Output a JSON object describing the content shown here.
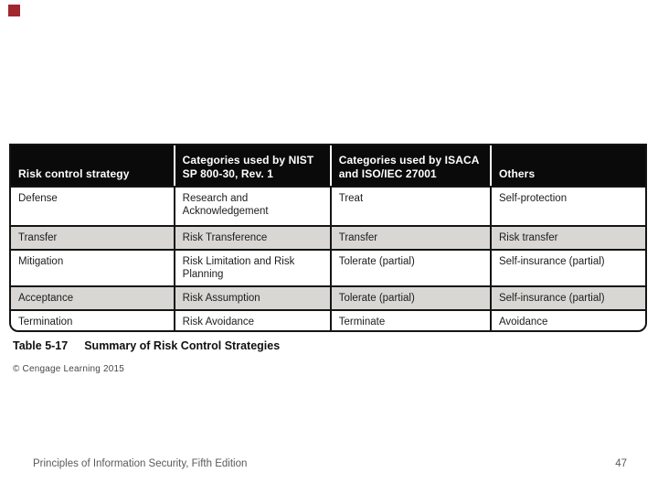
{
  "slide": {
    "accent_square_color": "#a1262d",
    "footer": {
      "left": "Principles of Information Security, Fifth Edition",
      "page": "47"
    }
  },
  "table_figure": {
    "caption_label": "Table 5-17",
    "caption_title": "Summary of Risk Control Strategies",
    "credit": "© Cengage Learning 2015",
    "colors": {
      "header_bg": "#0a0a0a",
      "header_text": "#ffffff",
      "shaded_row_bg": "#d8d7d3",
      "border": "#141414",
      "body_text": "#1c1c1c"
    },
    "columns": [
      "Risk control strategy",
      "Categories used by NIST SP 800-30, Rev. 1",
      "Categories used by ISACA and ISO/IEC 27001",
      "Others"
    ],
    "rows": [
      {
        "shaded": false,
        "cells": [
          "Defense",
          "Research and Acknowledgement",
          "Treat",
          "Self-protection"
        ]
      },
      {
        "shaded": true,
        "cells": [
          "Transfer",
          "Risk Transference",
          "Transfer",
          "Risk transfer"
        ]
      },
      {
        "shaded": false,
        "cells": [
          "Mitigation",
          "Risk Limitation and Risk Planning",
          "Tolerate (partial)",
          "Self-insurance (partial)"
        ]
      },
      {
        "shaded": true,
        "cells": [
          "Acceptance",
          "Risk Assumption",
          "Tolerate (partial)",
          "Self-insurance (partial)"
        ]
      },
      {
        "shaded": false,
        "cells": [
          "Termination",
          "Risk Avoidance",
          "Terminate",
          "Avoidance"
        ]
      }
    ]
  }
}
